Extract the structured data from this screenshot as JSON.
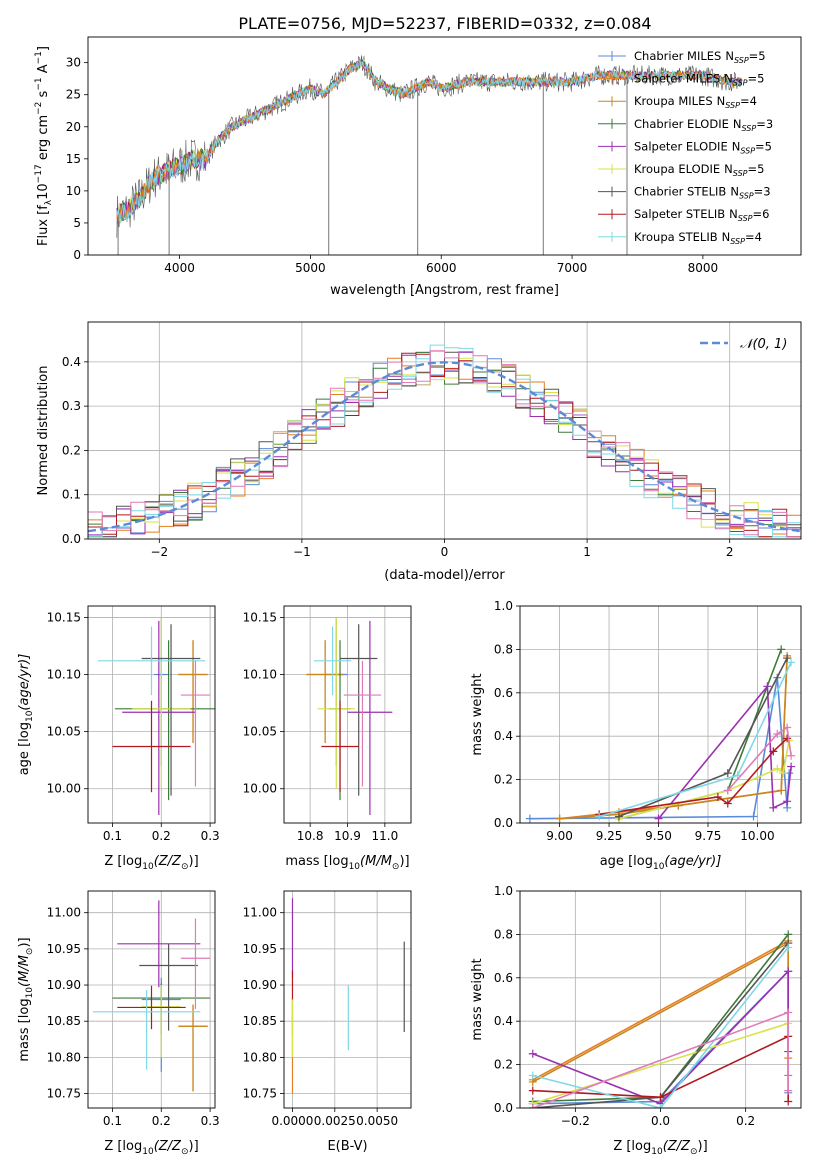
{
  "page_title": "PLATE=0756, MJD=52237, FIBERID=0332, z=0.084",
  "colors": {
    "Chabrier MILES": "#5b8bd8",
    "Salpeter MILES": "#e67e22",
    "Kroupa MILES": "#c8871f",
    "Chabrier ELODIE": "#3d7a3a",
    "Salpeter ELODIE": "#9b2fb0",
    "Kroupa ELODIE": "#d6e34a",
    "Chabrier STELIB": "#555555",
    "Salpeter STELIB": "#b0191e",
    "Kroupa STELIB": "#7fd8e6",
    "normal_curve": "#5b8bd8",
    "grid": "#b0b0b0",
    "extra_pink": "#e07ab8"
  },
  "chart_data": [
    {
      "type": "line",
      "title": "PLATE=0756, MJD=52237, FIBERID=0332, z=0.084",
      "xlabel": "wavelength [Angstrom, rest frame]",
      "ylabel": "Flux [f",
      "ylabel_sub": "λ",
      "ylabel_rest": "10",
      "ylabel_sup": "−17",
      "ylabel_units": " erg cm",
      "ylabel_cm_sup": "−2",
      "ylabel_s": " s",
      "ylabel_s_sup": "−1",
      "ylabel_A": " A",
      "ylabel_A_sup": "−1",
      "ylabel_close": "]",
      "xlim": [
        3300,
        8750
      ],
      "ylim": [
        0,
        34
      ],
      "xticks": [
        4000,
        5000,
        6000,
        7000,
        8000
      ],
      "yticks": [
        0,
        5,
        10,
        15,
        20,
        25,
        30
      ],
      "grid": false,
      "legend_position": "top-right",
      "spectrum_envelope": {
        "x": [
          3500,
          3600,
          3700,
          3800,
          3900,
          4000,
          4100,
          4200,
          4300,
          4400,
          4500,
          4600,
          4700,
          4800,
          4900,
          5000,
          5100,
          5200,
          5300,
          5400,
          5500,
          5600,
          5700,
          5800,
          5900,
          6000,
          6200,
          6400,
          6600,
          6800,
          7000,
          7200,
          7400,
          7600,
          7800,
          8000,
          8200,
          8300
        ],
        "y": [
          6,
          7,
          9,
          12,
          13,
          14,
          15,
          15,
          18,
          20,
          21,
          22,
          23,
          24,
          25,
          26,
          25,
          27,
          29,
          30,
          27,
          26,
          25,
          26,
          27,
          26,
          27,
          27,
          27,
          27,
          27,
          28,
          28,
          28,
          28,
          28,
          27,
          27
        ]
      },
      "series": [
        {
          "name": "Chabrier MILES",
          "n_ssp": "5"
        },
        {
          "name": "Salpeter MILES",
          "n_ssp": "5"
        },
        {
          "name": "Kroupa MILES",
          "n_ssp": "4"
        },
        {
          "name": "Chabrier ELODIE",
          "n_ssp": "3"
        },
        {
          "name": "Salpeter ELODIE",
          "n_ssp": "5"
        },
        {
          "name": "Kroupa ELODIE",
          "n_ssp": "5"
        },
        {
          "name": "Chabrier STELIB",
          "n_ssp": "3"
        },
        {
          "name": "Salpeter STELIB",
          "n_ssp": "6"
        },
        {
          "name": "Kroupa STELIB",
          "n_ssp": "4"
        }
      ],
      "ssp_label": "N",
      "ssp_sub": "SSP"
    },
    {
      "type": "bar",
      "xlabel": "(data-model)/error",
      "ylabel": "Normed distribution",
      "xlim": [
        -2.5,
        2.5
      ],
      "ylim": [
        0,
        0.49
      ],
      "xticks": [
        -2,
        -1,
        0,
        1,
        2
      ],
      "yticks": [
        0.0,
        0.1,
        0.2,
        0.3,
        0.4
      ],
      "grid": true,
      "legend_position": "top-right",
      "legend_label": "𝒩(0, 1)",
      "bin_width": 0.1,
      "bin_start": -2.5,
      "normal_mean": 0,
      "normal_sigma": 1
    },
    {
      "type": "scatter",
      "xlabel": "Z [log",
      "xlabel_sub": "10",
      "xlabel_rest": "(Z/Z",
      "xlabel_sun": "⊙",
      "xlabel_close": ")]",
      "ylabel": "age  [log",
      "ylabel_sub": "10",
      "ylabel_rest": "(age/yr)]",
      "xlim": [
        0.05,
        0.31
      ],
      "ylim": [
        9.97,
        10.16
      ],
      "xticks": [
        0.1,
        0.2,
        0.3
      ],
      "yticks": [
        10.0,
        10.05,
        10.1,
        10.15
      ],
      "grid": true,
      "points": [
        {
          "series": "Chabrier MILES",
          "x": 0.2,
          "y": 10.1,
          "xerr": 0.015,
          "yerr": [
            0.08,
            0.05
          ]
        },
        {
          "series": "Salpeter MILES",
          "x": 0.265,
          "y": 10.1,
          "xerr": 0.03,
          "yerr": [
            0.06,
            0.03
          ]
        },
        {
          "series": "Kroupa MILES",
          "x": 0.265,
          "y": 10.1,
          "xerr": 0.03,
          "yerr": [
            0.06,
            0.03
          ]
        },
        {
          "series": "Chabrier ELODIE",
          "x": 0.215,
          "y": 10.07,
          "xerr": 0.11,
          "yerr": [
            0.08,
            0.06
          ]
        },
        {
          "series": "Salpeter ELODIE",
          "x": 0.195,
          "y": 10.067,
          "xerr": 0.075,
          "yerr": [
            0.09,
            0.08
          ]
        },
        {
          "series": "Kroupa ELODIE",
          "x": 0.2,
          "y": 10.07,
          "xerr": 0.06,
          "yerr": [
            0.07,
            0.08
          ]
        },
        {
          "series": "Chabrier STELIB",
          "x": 0.22,
          "y": 10.114,
          "xerr": 0.06,
          "yerr": [
            0.12,
            0.03
          ]
        },
        {
          "series": "Salpeter STELIB",
          "x": 0.18,
          "y": 10.037,
          "xerr": 0.08,
          "yerr": [
            0.04,
            0.04
          ]
        },
        {
          "series": "Kroupa STELIB",
          "x": 0.18,
          "y": 10.112,
          "xerr": 0.11,
          "yerr": [
            0.03,
            0.03
          ]
        },
        {
          "series": "extra_pink",
          "x": 0.27,
          "y": 10.082,
          "xerr": 0.03,
          "yerr": [
            0.08,
            0.03
          ]
        }
      ]
    },
    {
      "type": "scatter",
      "xlabel": "mass [log",
      "xlabel_sub": "10",
      "xlabel_rest": "(M/M",
      "xlabel_sun": "⊙",
      "xlabel_close": ")]",
      "xlim": [
        10.73,
        11.07
      ],
      "ylim": [
        9.97,
        10.16
      ],
      "xticks": [
        10.8,
        10.9,
        11.0
      ],
      "yticks": [
        10.0,
        10.05,
        10.1,
        10.15
      ],
      "grid": true,
      "points": [
        {
          "series": "Chabrier MILES",
          "x": 10.87,
          "y": 10.1,
          "xerr": 0.03,
          "yerr": [
            0.08,
            0.05
          ]
        },
        {
          "series": "Salpeter MILES",
          "x": 10.84,
          "y": 10.1,
          "xerr": 0.05,
          "yerr": [
            0.06,
            0.03
          ]
        },
        {
          "series": "Kroupa MILES",
          "x": 10.84,
          "y": 10.1,
          "xerr": 0.05,
          "yerr": [
            0.06,
            0.03
          ]
        },
        {
          "series": "Chabrier ELODIE",
          "x": 10.88,
          "y": 10.07,
          "xerr": 0.03,
          "yerr": [
            0.08,
            0.06
          ]
        },
        {
          "series": "Salpeter ELODIE",
          "x": 10.96,
          "y": 10.067,
          "xerr": 0.06,
          "yerr": [
            0.09,
            0.08
          ]
        },
        {
          "series": "Kroupa ELODIE",
          "x": 10.87,
          "y": 10.07,
          "xerr": 0.05,
          "yerr": [
            0.07,
            0.08
          ]
        },
        {
          "series": "Chabrier STELIB",
          "x": 10.93,
          "y": 10.114,
          "xerr": 0.05,
          "yerr": [
            0.12,
            0.03
          ]
        },
        {
          "series": "Salpeter STELIB",
          "x": 10.88,
          "y": 10.037,
          "xerr": 0.05,
          "yerr": [
            0.04,
            0.04
          ]
        },
        {
          "series": "Kroupa STELIB",
          "x": 10.86,
          "y": 10.112,
          "xerr": 0.05,
          "yerr": [
            0.03,
            0.03
          ]
        },
        {
          "series": "extra_pink",
          "x": 10.94,
          "y": 10.082,
          "xerr": 0.05,
          "yerr": [
            0.08,
            0.03
          ]
        }
      ]
    },
    {
      "type": "line",
      "xlabel": "age  [log",
      "xlabel_sub": "10",
      "xlabel_rest": "(age/yr)]",
      "ylabel": "mass weight",
      "xlim": [
        8.8,
        10.22
      ],
      "ylim": [
        0,
        1.0
      ],
      "xticks": [
        9.0,
        9.25,
        9.5,
        9.75,
        10.0
      ],
      "yticks": [
        0.0,
        0.2,
        0.4,
        0.6,
        0.8,
        1.0
      ],
      "grid": true,
      "series": [
        {
          "name": "Chabrier MILES",
          "x": [
            8.85,
            9.98,
            10.1,
            10.15,
            10.16
          ],
          "y": [
            0.02,
            0.03,
            0.67,
            0.07,
            0.23
          ]
        },
        {
          "name": "Salpeter MILES",
          "x": [
            9.0,
            9.3,
            9.6,
            10.12,
            10.15
          ],
          "y": [
            0.02,
            0.05,
            0.08,
            0.15,
            0.77
          ]
        },
        {
          "name": "Kroupa MILES",
          "x": [
            9.0,
            9.3,
            9.6,
            10.12,
            10.15
          ],
          "y": [
            0.02,
            0.04,
            0.08,
            0.15,
            0.76
          ]
        },
        {
          "name": "Chabrier ELODIE",
          "x": [
            9.3,
            9.85,
            10.12
          ],
          "y": [
            0.02,
            0.15,
            0.8
          ]
        },
        {
          "name": "Salpeter ELODIE",
          "x": [
            9.5,
            10.05,
            10.08,
            10.15,
            10.17
          ],
          "y": [
            0.02,
            0.63,
            0.07,
            0.1,
            0.26
          ]
        },
        {
          "name": "Kroupa ELODIE",
          "x": [
            9.3,
            9.85,
            10.1,
            10.13,
            10.16
          ],
          "y": [
            0.02,
            0.15,
            0.25,
            0.23,
            0.38
          ]
        },
        {
          "name": "Chabrier STELIB",
          "x": [
            9.3,
            9.85,
            10.15
          ],
          "y": [
            0.03,
            0.23,
            0.76
          ]
        },
        {
          "name": "Salpeter STELIB",
          "x": [
            9.2,
            9.8,
            9.85,
            10.08,
            10.15
          ],
          "y": [
            0.04,
            0.12,
            0.09,
            0.33,
            0.39
          ]
        },
        {
          "name": "Kroupa STELIB",
          "x": [
            9.2,
            9.9,
            10.17
          ],
          "y": [
            0.03,
            0.22,
            0.74
          ]
        },
        {
          "name": "extra_pink",
          "x": [
            9.85,
            10.1,
            10.15,
            10.17
          ],
          "y": [
            0.15,
            0.41,
            0.44,
            0.31
          ]
        }
      ]
    },
    {
      "type": "scatter",
      "xlabel": "Z [log",
      "xlabel_sub": "10",
      "xlabel_rest": "(Z/Z",
      "xlabel_sun": "⊙",
      "xlabel_close": ")]",
      "ylabel": "mass [log",
      "ylabel_sub": "10",
      "ylabel_rest": "(M/M",
      "ylabel_sun": "⊙",
      "ylabel_close": ")]",
      "xlim": [
        0.05,
        0.31
      ],
      "ylim": [
        10.73,
        11.03
      ],
      "xticks": [
        0.1,
        0.2,
        0.3
      ],
      "yticks": [
        10.75,
        10.8,
        10.85,
        10.9,
        10.95,
        11.0
      ],
      "grid": true,
      "points": [
        {
          "series": "Chabrier MILES",
          "x": 0.2,
          "y": 10.88,
          "xerr": 0.04,
          "yerr": [
            0.1,
            0.03
          ]
        },
        {
          "series": "Salpeter MILES",
          "x": 0.265,
          "y": 10.843,
          "xerr": 0.03,
          "yerr": [
            0.09,
            0.03
          ]
        },
        {
          "series": "Kroupa MILES",
          "x": 0.265,
          "y": 10.843,
          "xerr": 0.03,
          "yerr": [
            0.09,
            0.03
          ]
        },
        {
          "series": "Chabrier ELODIE",
          "x": 0.2,
          "y": 10.882,
          "xerr": 0.1,
          "yerr": [
            0.05,
            0.02
          ]
        },
        {
          "series": "Salpeter ELODIE",
          "x": 0.195,
          "y": 10.957,
          "xerr": 0.085,
          "yerr": [
            0.06,
            0.06
          ]
        },
        {
          "series": "Kroupa ELODIE",
          "x": 0.2,
          "y": 10.87,
          "xerr": 0.04,
          "yerr": [
            0.07,
            0.03
          ]
        },
        {
          "series": "Chabrier STELIB",
          "x": 0.215,
          "y": 10.927,
          "xerr": 0.06,
          "yerr": [
            0.09,
            0.03
          ]
        },
        {
          "series": "Salpeter STELIB",
          "x": 0.18,
          "y": 10.869,
          "xerr": 0.07,
          "yerr": [
            0.03,
            0.03
          ]
        },
        {
          "series": "Kroupa STELIB",
          "x": 0.17,
          "y": 10.863,
          "xerr": 0.11,
          "yerr": [
            0.08,
            0.03
          ]
        },
        {
          "series": "extra_pink",
          "x": 0.27,
          "y": 10.937,
          "xerr": 0.03,
          "yerr": [
            0.07,
            0.055
          ]
        }
      ]
    },
    {
      "type": "scatter",
      "xlabel": "E(B-V)",
      "xlim": [
        -0.0005,
        0.007
      ],
      "ylim": [
        10.73,
        11.03
      ],
      "xticks": [
        0.0,
        0.0025,
        0.005
      ],
      "xtick_labels": [
        "0.0000",
        "0.0025",
        "0.0050"
      ],
      "yticks": [
        10.75,
        10.8,
        10.85,
        10.9,
        10.95,
        11.0
      ],
      "grid": true,
      "points": [
        {
          "series": "Salpeter ELODIE",
          "x": 0.0,
          "y": 10.97,
          "xerr": 0,
          "yerr": [
            0.06,
            0.05
          ]
        },
        {
          "series": "Salpeter STELIB",
          "x": 0.0,
          "y": 10.88,
          "xerr": 0,
          "yerr": [
            0.05,
            0.04
          ]
        },
        {
          "series": "Salpeter MILES",
          "x": 0.0,
          "y": 10.78,
          "xerr": 0,
          "yerr": [
            0.03,
            0.05
          ]
        },
        {
          "series": "Kroupa ELODIE",
          "x": 0.0,
          "y": 10.85,
          "xerr": 0,
          "yerr": [
            0.05,
            0.03
          ]
        },
        {
          "series": "Kroupa STELIB",
          "x": 0.0033,
          "y": 10.86,
          "xerr": 0,
          "yerr": [
            0.05,
            0.04
          ]
        },
        {
          "series": "Chabrier STELIB",
          "x": 0.0066,
          "y": 10.9,
          "xerr": 0,
          "yerr": [
            0.065,
            0.06
          ]
        }
      ]
    },
    {
      "type": "line",
      "xlabel": "Z [log",
      "xlabel_sub": "10",
      "xlabel_rest": "(Z/Z",
      "xlabel_sun": "⊙",
      "xlabel_close": ")]",
      "ylabel": "mass weight",
      "xlim": [
        -0.33,
        0.33
      ],
      "ylim": [
        0,
        1.0
      ],
      "xticks": [
        -0.2,
        0.0,
        0.2
      ],
      "yticks": [
        0.0,
        0.2,
        0.4,
        0.6,
        0.8,
        1.0
      ],
      "grid": true,
      "series": [
        {
          "name": "Chabrier MILES",
          "x": [
            -0.3,
            0.0,
            0.3,
            0.3
          ],
          "y": [
            0.02,
            0.03,
            0.63,
            0.07
          ]
        },
        {
          "name": "Salpeter MILES",
          "x": [
            -0.3,
            0.3,
            0.3
          ],
          "y": [
            0.13,
            0.77,
            0.23
          ]
        },
        {
          "name": "Kroupa MILES",
          "x": [
            -0.3,
            0.3,
            0.3
          ],
          "y": [
            0.12,
            0.76,
            0.15
          ]
        },
        {
          "name": "Chabrier ELODIE",
          "x": [
            -0.3,
            0.0,
            0.3
          ],
          "y": [
            0.03,
            0.05,
            0.8
          ]
        },
        {
          "name": "Salpeter ELODIE",
          "x": [
            -0.3,
            0.0,
            0.3,
            0.3
          ],
          "y": [
            0.25,
            0.02,
            0.63,
            0.26
          ]
        },
        {
          "name": "Kroupa ELODIE",
          "x": [
            -0.3,
            0.3
          ],
          "y": [
            0.02,
            0.39
          ]
        },
        {
          "name": "Chabrier STELIB",
          "x": [
            -0.3,
            0.0,
            0.3
          ],
          "y": [
            0.0,
            0.05,
            0.76
          ]
        },
        {
          "name": "Salpeter STELIB",
          "x": [
            -0.3,
            0.0,
            0.3,
            0.3
          ],
          "y": [
            0.08,
            0.05,
            0.33,
            0.03
          ]
        },
        {
          "name": "Kroupa STELIB",
          "x": [
            -0.3,
            0.0,
            0.3
          ],
          "y": [
            0.15,
            0.0,
            0.74
          ]
        },
        {
          "name": "extra_pink",
          "x": [
            -0.3,
            0.3,
            0.3
          ],
          "y": [
            0.0,
            0.44,
            0.08
          ]
        }
      ]
    }
  ]
}
